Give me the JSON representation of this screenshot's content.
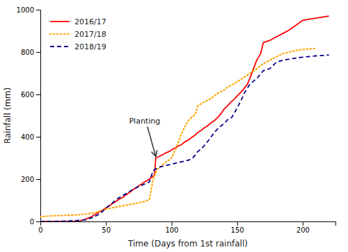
{
  "chart_data": {
    "type": "line",
    "xlabel": "Time (Days from 1st rainfall)",
    "ylabel": "Rainfall (mm)",
    "xlim": [
      0,
      225
    ],
    "ylim": [
      0,
      1000
    ],
    "xticks": [
      0,
      50,
      100,
      150,
      200
    ],
    "yticks": [
      0,
      200,
      400,
      600,
      800,
      1000
    ],
    "grid": false,
    "legend": "upper left",
    "annotations": [
      {
        "text": "Planting",
        "x": 88,
        "y": 300
      }
    ],
    "series": [
      {
        "name": "2016/17",
        "color": "#FF0000",
        "line_style": "solid",
        "x": [
          0,
          30,
          31,
          33,
          35,
          37,
          39,
          41,
          43,
          45,
          47,
          49,
          51,
          53,
          55,
          57,
          59,
          61,
          63,
          65,
          67,
          69,
          71,
          73,
          75,
          77,
          79,
          81,
          83,
          85,
          87,
          88,
          90,
          92,
          94,
          96,
          98,
          100,
          102,
          105,
          108,
          110,
          113,
          115,
          118,
          120,
          123,
          125,
          128,
          130,
          133,
          135,
          138,
          140,
          143,
          145,
          148,
          150,
          153,
          155,
          158,
          160,
          163,
          165,
          168,
          170,
          175,
          180,
          185,
          190,
          200,
          205,
          210,
          215,
          220
        ],
        "values": [
          0,
          0,
          5,
          8,
          12,
          18,
          22,
          30,
          38,
          45,
          52,
          60,
          68,
          75,
          85,
          92,
          100,
          108,
          115,
          125,
          133,
          142,
          152,
          160,
          168,
          175,
          185,
          192,
          200,
          210,
          218,
          300,
          305,
          312,
          318,
          325,
          330,
          338,
          345,
          355,
          365,
          375,
          385,
          395,
          408,
          420,
          432,
          442,
          455,
          465,
          478,
          490,
          512,
          530,
          548,
          562,
          578,
          592,
          612,
          625,
          650,
          680,
          730,
          762,
          793,
          845,
          855,
          872,
          888,
          905,
          950,
          955,
          960,
          965,
          970
        ]
      },
      {
        "name": "2017/18",
        "color": "#FFA500",
        "line_style": "dotted",
        "x": [
          0,
          5,
          10,
          15,
          20,
          25,
          30,
          35,
          40,
          43,
          46,
          50,
          55,
          60,
          65,
          70,
          75,
          80,
          83,
          86,
          89,
          92,
          95,
          98,
          100,
          103,
          108,
          112,
          115,
          118,
          120,
          123,
          126,
          130,
          133,
          136,
          140,
          143,
          147,
          150,
          155,
          160,
          165,
          170,
          175,
          180,
          185,
          190,
          195,
          200,
          205,
          210
        ],
        "values": [
          22,
          25,
          27,
          28,
          29,
          30,
          32,
          35,
          40,
          44,
          50,
          58,
          65,
          70,
          76,
          82,
          88,
          95,
          102,
          200,
          245,
          262,
          278,
          290,
          300,
          340,
          420,
          470,
          490,
          505,
          545,
          558,
          568,
          580,
          595,
          608,
          620,
          635,
          648,
          660,
          680,
          700,
          722,
          745,
          762,
          778,
          793,
          800,
          808,
          812,
          815,
          817
        ]
      },
      {
        "name": "2018/19",
        "color": "#00008B",
        "line_style": "dashed",
        "x": [
          0,
          10,
          20,
          30,
          35,
          38,
          41,
          44,
          47,
          50,
          53,
          56,
          59,
          62,
          65,
          68,
          71,
          74,
          77,
          80,
          83,
          86,
          88,
          90,
          93,
          96,
          100,
          103,
          106,
          110,
          113,
          116,
          120,
          123,
          126,
          130,
          133,
          136,
          140,
          143,
          146,
          150,
          153,
          156,
          160,
          163,
          166,
          170,
          175,
          180,
          185,
          190,
          195,
          200,
          205,
          210,
          215,
          220
        ],
        "values": [
          0,
          0,
          2,
          5,
          8,
          15,
          22,
          32,
          45,
          62,
          78,
          93,
          108,
          120,
          130,
          142,
          152,
          162,
          170,
          178,
          186,
          240,
          248,
          255,
          260,
          265,
          270,
          275,
          280,
          285,
          290,
          298,
          330,
          345,
          365,
          398,
          423,
          443,
          462,
          482,
          492,
          535,
          572,
          612,
          650,
          665,
          682,
          712,
          722,
          752,
          762,
          767,
          772,
          776,
          779,
          782,
          784,
          786
        ]
      }
    ]
  }
}
